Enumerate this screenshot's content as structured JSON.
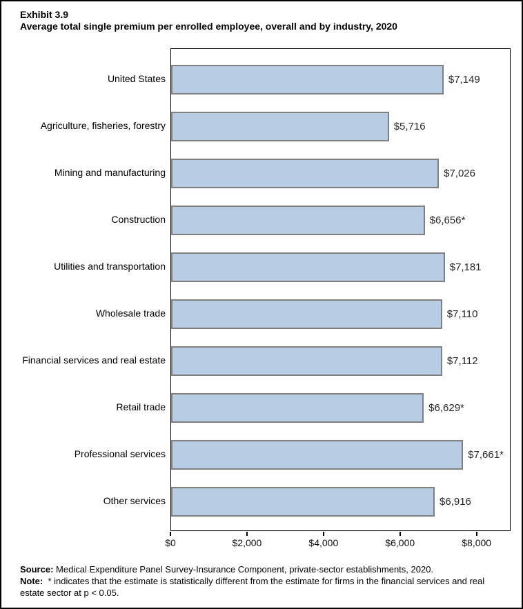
{
  "title": {
    "exhibit": "Exhibit 3.9",
    "main": "Average total single premium per enrolled employee, overall and by industry, 2020"
  },
  "chart_data": {
    "type": "bar",
    "orientation": "horizontal",
    "title": "Average total single premium per enrolled employee, overall and by industry, 2020",
    "categories": [
      "United States",
      "Agriculture, fisheries, forestry",
      "Mining and manufacturing",
      "Construction",
      "Utilities and transportation",
      "Wholesale trade",
      "Financial services and real estate",
      "Retail trade",
      "Professional services",
      "Other services"
    ],
    "values": [
      7149,
      5716,
      7026,
      6656,
      7181,
      7110,
      7112,
      6629,
      7661,
      6916
    ],
    "value_labels": [
      "$7,149",
      "$5,716",
      "$7,026",
      "$6,656*",
      "$7,181",
      "$7,110",
      "$7,112",
      "$6,629*",
      "$7,661*",
      "$6,916"
    ],
    "xlabel": "",
    "ylabel": "",
    "xlim": [
      0,
      8889
    ],
    "x_ticks": [
      0,
      2000,
      4000,
      6000,
      8000
    ],
    "x_tick_labels": [
      "$0",
      "$2,000",
      "$4,000",
      "$6,000",
      "$8,000"
    ],
    "grid": false,
    "legend": false,
    "bar_fill": "#b8cce4",
    "bar_border": "#7f7f7f"
  },
  "footer": {
    "source_label": "Source:",
    "source_text": "Medical Expenditure Panel Survey-Insurance Component, private-sector establishments, 2020.",
    "note_label": "Note:",
    "note_text": "* indicates that the estimate is statistically different from the estimate for firms in the financial services and real estate sector at p < 0.05."
  }
}
